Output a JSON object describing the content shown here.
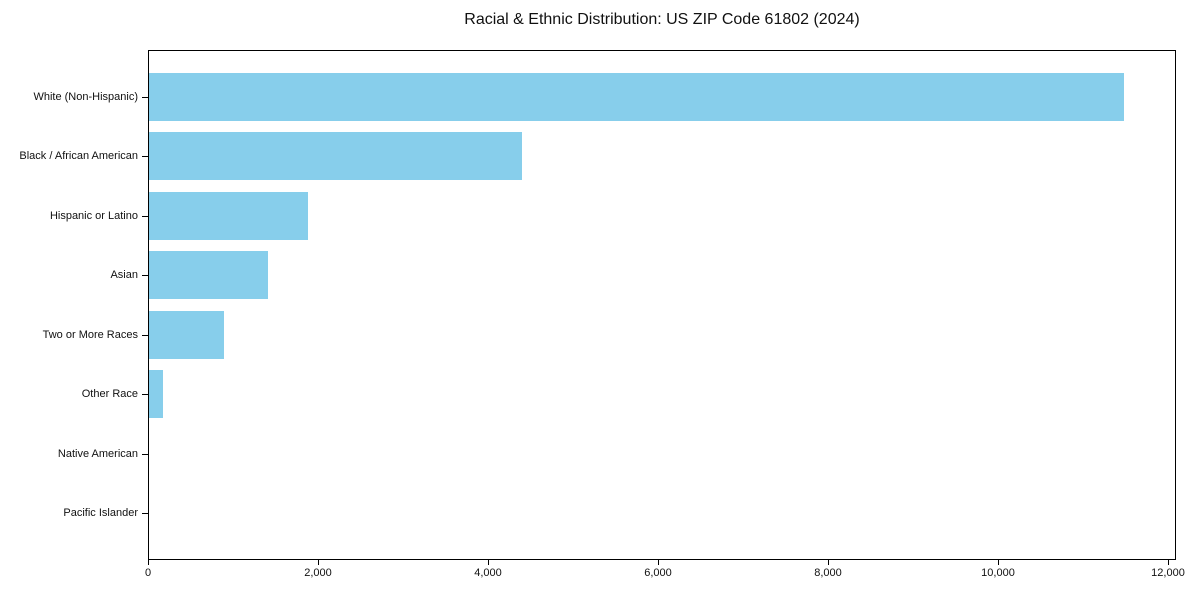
{
  "chart_data": {
    "type": "bar",
    "orientation": "horizontal",
    "title": "Racial & Ethnic Distribution: US ZIP Code 61802 (2024)",
    "categories": [
      "White (Non-Hispanic)",
      "Black / African American",
      "Hispanic or Latino",
      "Asian",
      "Two or More Races",
      "Other Race",
      "Native American",
      "Pacific Islander"
    ],
    "values": [
      11500,
      4400,
      1880,
      1400,
      890,
      170,
      0,
      0
    ],
    "xlabel": "",
    "ylabel": "",
    "xlim": [
      0,
      12100
    ],
    "xticks": [
      0,
      2000,
      4000,
      6000,
      8000,
      10000,
      12000
    ],
    "xtick_labels": [
      "0",
      "2,000",
      "4,000",
      "6,000",
      "8,000",
      "10,000",
      "12,000"
    ],
    "grid": false,
    "legend": null,
    "colors": {
      "bar": "#87ceeb",
      "axis": "#000000",
      "background": "#ffffff",
      "text": "#111111"
    }
  }
}
